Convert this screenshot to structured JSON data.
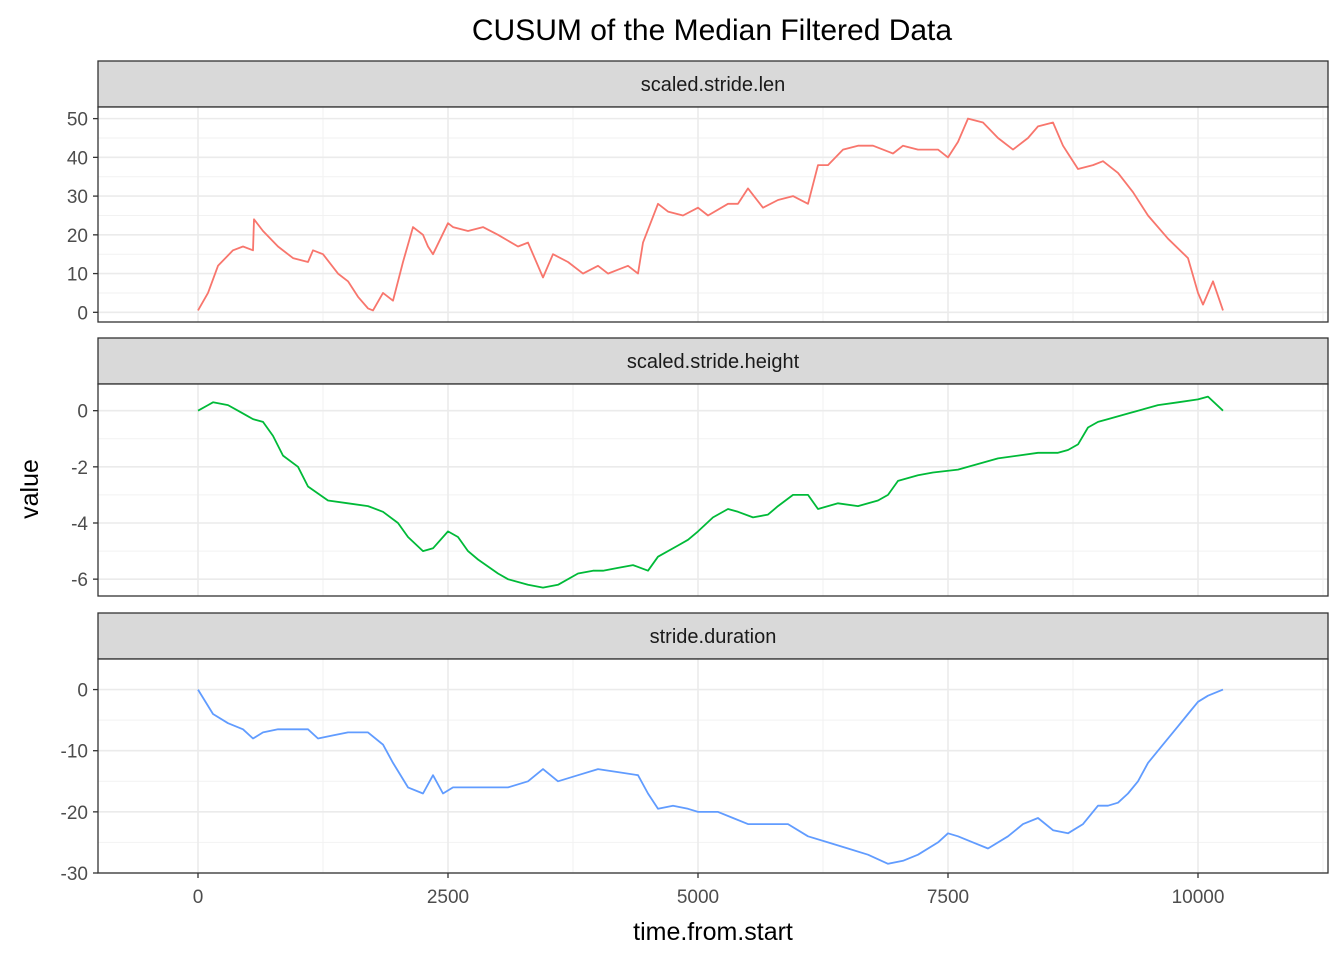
{
  "chart_data": {
    "type": "line",
    "title": "CUSUM of the Median Filtered Data",
    "xlabel": "time.from.start",
    "ylabel": "value",
    "xlim": [
      -1000,
      11300
    ],
    "x_ticks": [
      0,
      2500,
      5000,
      7500,
      10000
    ],
    "x_tick_labels": [
      "0",
      "2500",
      "5000",
      "7500",
      "10000"
    ],
    "grid": true,
    "legend": "none",
    "facets": [
      {
        "name": "scaled.stride.len",
        "color": "#F8766D",
        "ylim": [
          -2.5,
          53
        ],
        "y_ticks": [
          0,
          10,
          20,
          30,
          40,
          50
        ],
        "y_tick_labels": [
          "0",
          "10",
          "20",
          "30",
          "40",
          "50"
        ],
        "x": [
          0,
          100,
          200,
          350,
          450,
          550,
          560,
          650,
          800,
          950,
          1100,
          1150,
          1250,
          1400,
          1500,
          1600,
          1700,
          1750,
          1850,
          1950,
          2050,
          2150,
          2250,
          2300,
          2350,
          2500,
          2550,
          2700,
          2850,
          3000,
          3200,
          3300,
          3450,
          3550,
          3700,
          3850,
          4000,
          4100,
          4200,
          4300,
          4400,
          4450,
          4600,
          4700,
          4850,
          5000,
          5100,
          5300,
          5400,
          5500,
          5650,
          5800,
          5950,
          6100,
          6200,
          6300,
          6450,
          6600,
          6750,
          6950,
          7050,
          7200,
          7400,
          7500,
          7600,
          7700,
          7850,
          8000,
          8150,
          8300,
          8400,
          8550,
          8650,
          8700,
          8800,
          8950,
          9050,
          9200,
          9350,
          9500,
          9700,
          9900,
          10000,
          10050,
          10150,
          10250
        ],
        "y": [
          0.5,
          5,
          12,
          16,
          17,
          16,
          24,
          21,
          17,
          14,
          13,
          16,
          15,
          10,
          8,
          4,
          1,
          0.5,
          5,
          3,
          13,
          22,
          20,
          17,
          15,
          23,
          22,
          21,
          22,
          20,
          17,
          18,
          9,
          15,
          13,
          10,
          12,
          10,
          11,
          12,
          10,
          18,
          28,
          26,
          25,
          27,
          25,
          28,
          28,
          32,
          27,
          29,
          30,
          28,
          38,
          38,
          42,
          43,
          43,
          41,
          43,
          42,
          42,
          40,
          44,
          50,
          49,
          45,
          42,
          45,
          48,
          49,
          43,
          41,
          37,
          38,
          39,
          36,
          31,
          25,
          19,
          14,
          5,
          2,
          8,
          0.5
        ]
      },
      {
        "name": "scaled.stride.height",
        "color": "#00BA38",
        "ylim": [
          -6.6,
          0.95
        ],
        "y_ticks": [
          0,
          -2,
          -4,
          -6
        ],
        "y_tick_labels": [
          "0",
          "-2",
          "-4",
          "-6"
        ],
        "x": [
          0,
          100,
          150,
          300,
          400,
          500,
          550,
          650,
          750,
          850,
          1000,
          1100,
          1300,
          1500,
          1700,
          1850,
          2000,
          2100,
          2250,
          2350,
          2500,
          2600,
          2700,
          2800,
          3000,
          3100,
          3300,
          3450,
          3600,
          3800,
          3950,
          4050,
          4200,
          4350,
          4500,
          4600,
          4800,
          4900,
          5000,
          5150,
          5300,
          5400,
          5550,
          5700,
          5800,
          5950,
          6100,
          6200,
          6400,
          6600,
          6800,
          6900,
          7000,
          7200,
          7350,
          7600,
          7800,
          8000,
          8200,
          8400,
          8600,
          8700,
          8800,
          8900,
          9000,
          9100,
          9300,
          9400,
          9600,
          9800,
          10000,
          10100,
          10250
        ],
        "y": [
          0,
          0.2,
          0.3,
          0.2,
          0,
          -0.2,
          -0.3,
          -0.4,
          -0.9,
          -1.6,
          -2.0,
          -2.7,
          -3.2,
          -3.3,
          -3.4,
          -3.6,
          -4.0,
          -4.5,
          -5.0,
          -4.9,
          -4.3,
          -4.5,
          -5.0,
          -5.3,
          -5.8,
          -6.0,
          -6.2,
          -6.3,
          -6.2,
          -5.8,
          -5.7,
          -5.7,
          -5.6,
          -5.5,
          -5.7,
          -5.2,
          -4.8,
          -4.6,
          -4.3,
          -3.8,
          -3.5,
          -3.6,
          -3.8,
          -3.7,
          -3.4,
          -3.0,
          -3.0,
          -3.5,
          -3.3,
          -3.4,
          -3.2,
          -3.0,
          -2.5,
          -2.3,
          -2.2,
          -2.1,
          -1.9,
          -1.7,
          -1.6,
          -1.5,
          -1.5,
          -1.4,
          -1.2,
          -0.6,
          -0.4,
          -0.3,
          -0.1,
          0,
          0.2,
          0.3,
          0.4,
          0.5,
          0
        ]
      },
      {
        "name": "stride.duration",
        "color": "#619CFF",
        "ylim": [
          -30,
          5
        ],
        "y_ticks": [
          0,
          -10,
          -20,
          -30
        ],
        "y_tick_labels": [
          "0",
          "-10",
          "-20",
          "-30"
        ],
        "x": [
          0,
          150,
          300,
          450,
          550,
          650,
          800,
          1000,
          1100,
          1200,
          1350,
          1500,
          1700,
          1850,
          1950,
          2100,
          2250,
          2350,
          2450,
          2550,
          2700,
          2900,
          3100,
          3300,
          3450,
          3600,
          3800,
          4000,
          4200,
          4400,
          4500,
          4600,
          4750,
          4900,
          5000,
          5200,
          5350,
          5500,
          5700,
          5900,
          6100,
          6300,
          6500,
          6700,
          6900,
          7050,
          7200,
          7400,
          7500,
          7600,
          7750,
          7900,
          8100,
          8250,
          8400,
          8550,
          8700,
          8850,
          9000,
          9100,
          9200,
          9300,
          9400,
          9500,
          9650,
          9800,
          9900,
          10000,
          10100,
          10250
        ],
        "y": [
          0,
          -4,
          -5.5,
          -6.5,
          -8,
          -7,
          -6.5,
          -6.5,
          -6.5,
          -8,
          -7.5,
          -7,
          -7,
          -9,
          -12,
          -16,
          -17,
          -14,
          -17,
          -16,
          -16,
          -16,
          -16,
          -15,
          -13,
          -15,
          -14,
          -13,
          -13.5,
          -14,
          -17,
          -19.5,
          -19,
          -19.5,
          -20,
          -20,
          -21,
          -22,
          -22,
          -22,
          -24,
          -25,
          -26,
          -27,
          -28.5,
          -28,
          -27,
          -25,
          -23.5,
          -24,
          -25,
          -26,
          -24,
          -22,
          -21,
          -23,
          -23.5,
          -22,
          -19,
          -19,
          -18.5,
          -17,
          -15,
          -12,
          -9,
          -6,
          -4,
          -2,
          -1,
          0
        ]
      }
    ]
  }
}
